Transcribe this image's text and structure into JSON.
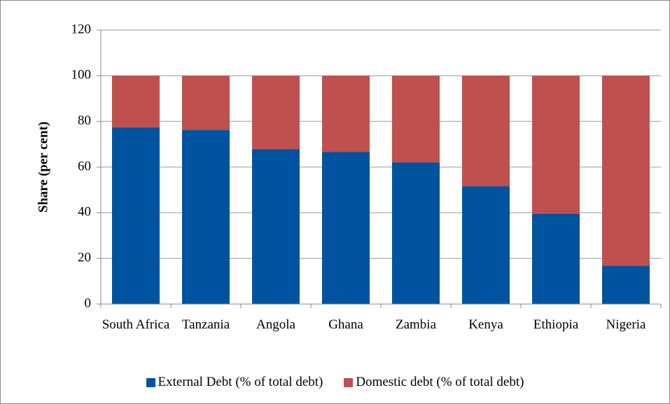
{
  "chart_data": {
    "type": "stacked-bar",
    "y_label": "Share (per cent)",
    "categories": [
      "South Africa",
      "Tanzania",
      "Angola",
      "Ghana",
      "Zambia",
      "Kenya",
      "Ethiopia",
      "Nigeria"
    ],
    "series": [
      {
        "name": "External Debt (% of total debt)",
        "color": "#00539f",
        "values": [
          77.3,
          76.2,
          67.9,
          66.6,
          62,
          51.6,
          39.6,
          16.8
        ]
      },
      {
        "name": "Domestic debt (% of total debt)",
        "color": "#c0504d",
        "values": [
          22.7,
          23.8,
          32.1,
          33.4,
          38,
          48.4,
          60.4,
          83.2
        ]
      }
    ],
    "ylim": [
      0,
      120
    ],
    "yticks": [
      0,
      20,
      40,
      60,
      80,
      100,
      120
    ],
    "grid": true,
    "legend": "bottom"
  }
}
